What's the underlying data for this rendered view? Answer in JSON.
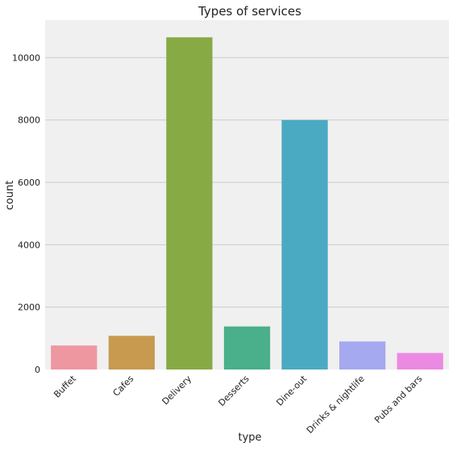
{
  "chart_data": {
    "type": "bar",
    "title": "Types of services",
    "xlabel": "type",
    "ylabel": "count",
    "categories": [
      "Buffet",
      "Cafes",
      "Delivery",
      "Desserts",
      "Dine-out",
      "Drinks & nightlife",
      "Pubs and bars"
    ],
    "values": [
      770,
      1080,
      10650,
      1380,
      8000,
      900,
      530
    ],
    "colors": [
      "#ee97a0",
      "#c79a4f",
      "#87aa45",
      "#4aaf8b",
      "#4aaac2",
      "#a5a9ef",
      "#ec8ae3"
    ],
    "ylim": [
      0,
      11200
    ],
    "yticks": [
      0,
      2000,
      4000,
      6000,
      8000,
      10000
    ],
    "ytick_labels": [
      "0",
      "2000",
      "4000",
      "6000",
      "8000",
      "10000"
    ],
    "grid": true,
    "grid_axis": "y",
    "background_color": "#f0f0f0",
    "grid_color": "#cbcbcb"
  }
}
